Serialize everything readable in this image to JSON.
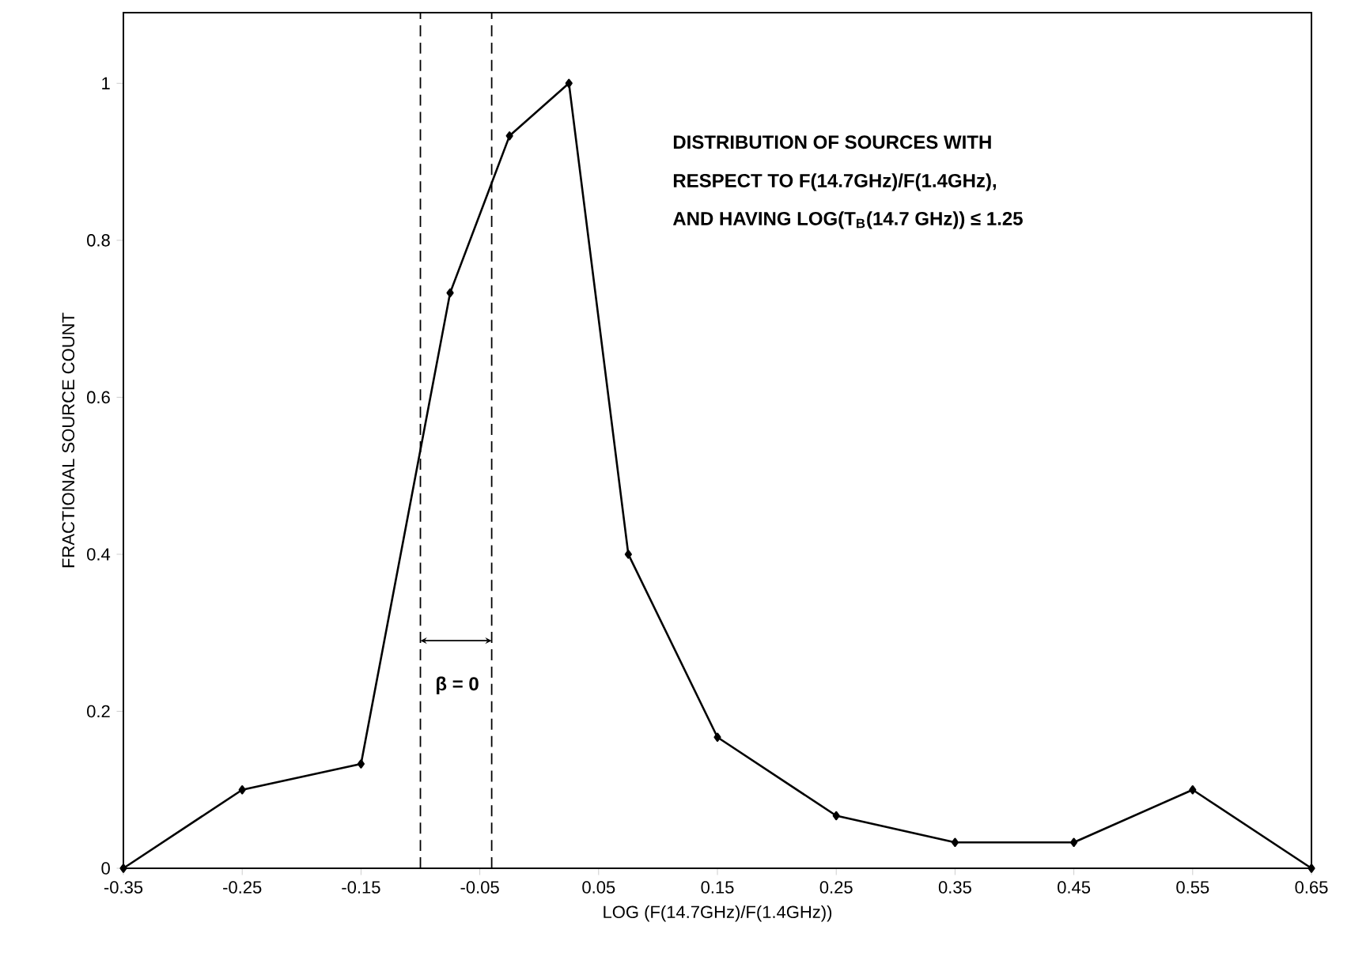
{
  "chart_data": {
    "type": "line",
    "xlabel": "LOG (F(14.7GHz)/F(1.4GHz))",
    "ylabel": "FRACTIONAL SOURCE COUNT",
    "x": [
      -0.35,
      -0.25,
      -0.15,
      -0.075,
      -0.025,
      0.025,
      0.075,
      0.15,
      0.25,
      0.35,
      0.45,
      0.55,
      0.65
    ],
    "values": [
      0,
      0.1,
      0.133,
      0.733,
      0.933,
      1.0,
      0.4,
      0.167,
      0.067,
      0.033,
      0.033,
      0.1,
      0
    ],
    "color": "#000000",
    "marker": "diamond",
    "line_style": "solid",
    "grid": false,
    "xlim": [
      -0.35,
      0.65
    ],
    "ylim": [
      0,
      1.09
    ],
    "xticks": [
      -0.35,
      -0.25,
      -0.15,
      -0.05,
      0.05,
      0.15,
      0.25,
      0.35,
      0.45,
      0.55,
      0.65
    ],
    "yticks": [
      0,
      0.2,
      0.4,
      0.6,
      0.8,
      1
    ],
    "ref_lines": [
      {
        "axis": "x",
        "value": -0.1,
        "line_style": "dashed",
        "color": "#000000"
      },
      {
        "axis": "x",
        "value": -0.04,
        "line_style": "dashed",
        "color": "#000000"
      }
    ],
    "annotations": [
      "DISTRIBUTION OF SOURCES WITH",
      "RESPECT TO F(14.7GHz)/F(1.4GHz),",
      "AND HAVING LOG(T$_{B}$(14.7 GHz)) ≤ 1.25",
      {
        "text": "β = 0",
        "x": -0.069,
        "y": 0.233
      }
    ]
  }
}
